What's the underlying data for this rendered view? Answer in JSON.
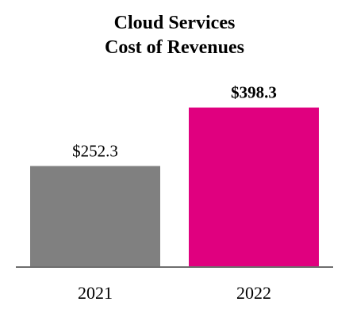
{
  "chart_data": {
    "type": "bar",
    "title": "Cloud Services",
    "subtitle": "Cost of Revenues",
    "categories": [
      "2021",
      "2022"
    ],
    "values": [
      252.3,
      398.3
    ],
    "value_labels": [
      "$252.3",
      "$398.3"
    ],
    "value_label_bold": [
      false,
      true
    ],
    "colors": [
      "#808080",
      "#E0007F"
    ],
    "axis_color": "#6e6e6e",
    "xlabel": "",
    "ylabel": "",
    "ylim": [
      0,
      455
    ],
    "grid": false,
    "legend": "none"
  }
}
